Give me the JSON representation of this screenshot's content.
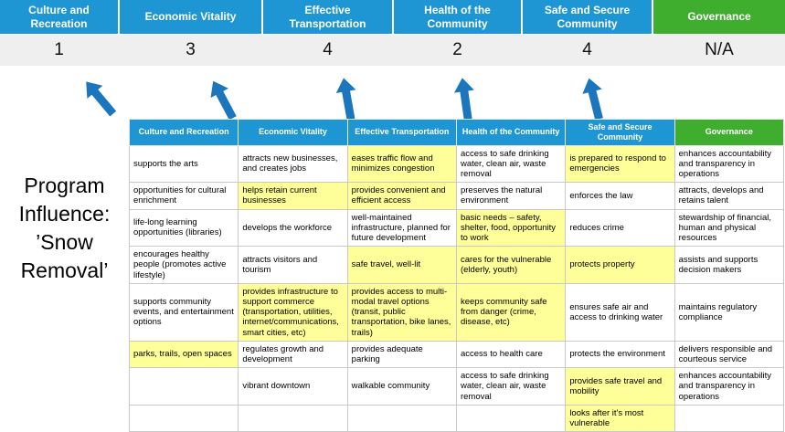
{
  "page": {
    "title": "Program Influence: ’Snow Removal’"
  },
  "colors": {
    "pillar_blue": "#1F96D4",
    "pillar_green": "#3FAE2E",
    "highlight_yellow": "#FFFF99",
    "arrow_blue": "#1C76BD",
    "score_band_bg": "#EFEFEF"
  },
  "summary": {
    "columns": [
      {
        "label": "Culture and Recreation",
        "score": "1",
        "color": "blue"
      },
      {
        "label": "Economic Vitality",
        "score": "3",
        "color": "blue"
      },
      {
        "label": "Effective Transportation",
        "score": "4",
        "color": "blue"
      },
      {
        "label": "Health of the Community",
        "score": "2",
        "color": "blue"
      },
      {
        "label": "Safe and Secure Community",
        "score": "4",
        "color": "blue"
      },
      {
        "label": "Governance",
        "score": "N/A",
        "color": "green"
      }
    ]
  },
  "matrix": {
    "headers": [
      {
        "label": "Culture and Recreation",
        "color": "blue"
      },
      {
        "label": "Economic Vitality",
        "color": "blue"
      },
      {
        "label": "Effective Transportation",
        "color": "blue"
      },
      {
        "label": "Health of the Community",
        "color": "blue"
      },
      {
        "label": "Safe and Secure Community",
        "color": "blue"
      },
      {
        "label": "Governance",
        "color": "green"
      }
    ],
    "rows": [
      [
        {
          "text": "supports the arts",
          "hl": false
        },
        {
          "text": "attracts new businesses, and creates jobs",
          "hl": false
        },
        {
          "text": "eases traffic flow and minimizes congestion",
          "hl": true
        },
        {
          "text": "access to safe drinking water, clean air, waste removal",
          "hl": false
        },
        {
          "text": "is prepared to respond to emergencies",
          "hl": true
        },
        {
          "text": "enhances accountability and transparency in operations",
          "hl": false
        }
      ],
      [
        {
          "text": "opportunities for cultural enrichment",
          "hl": false
        },
        {
          "text": "helps retain current businesses",
          "hl": true
        },
        {
          "text": "provides convenient and efficient access",
          "hl": true
        },
        {
          "text": "preserves the natural environment",
          "hl": false
        },
        {
          "text": "enforces the law",
          "hl": false
        },
        {
          "text": "attracts, develops and retains talent",
          "hl": false
        }
      ],
      [
        {
          "text": "life-long learning opportunities (libraries)",
          "hl": false
        },
        {
          "text": "develops the workforce",
          "hl": false
        },
        {
          "text": "well-maintained infrastructure, planned for future development",
          "hl": false
        },
        {
          "text": "basic needs – safety, shelter, food, opportunity to work",
          "hl": true
        },
        {
          "text": "reduces crime",
          "hl": false
        },
        {
          "text": "stewardship of financial, human and physical resources",
          "hl": false
        }
      ],
      [
        {
          "text": "encourages healthy people (promotes active lifestyle)",
          "hl": false
        },
        {
          "text": "attracts visitors and tourism",
          "hl": false
        },
        {
          "text": "safe travel, well-lit",
          "hl": true
        },
        {
          "text": "cares for the vulnerable (elderly, youth)",
          "hl": true
        },
        {
          "text": "protects property",
          "hl": true
        },
        {
          "text": "assists and supports decision makers",
          "hl": false
        }
      ],
      [
        {
          "text": "supports community events, and entertainment options",
          "hl": false
        },
        {
          "text": "provides infrastructure to support commerce (transportation, utilities, internet/communications, smart cities, etc)",
          "hl": true
        },
        {
          "text": "provides access to multi-modal travel options (transit, public transportation, bike lanes, trails)",
          "hl": true
        },
        {
          "text": "keeps community safe from danger (crime, disease, etc)",
          "hl": true
        },
        {
          "text": "ensures safe air and access to drinking water",
          "hl": false
        },
        {
          "text": "maintains regulatory compliance",
          "hl": false
        }
      ],
      [
        {
          "text": "parks, trails, open spaces",
          "hl": true
        },
        {
          "text": "regulates growth and development",
          "hl": false
        },
        {
          "text": "provides adequate parking",
          "hl": false
        },
        {
          "text": "access to health care",
          "hl": false
        },
        {
          "text": "protects the environment",
          "hl": false
        },
        {
          "text": "delivers responsible and courteous service",
          "hl": false
        }
      ],
      [
        {
          "text": "",
          "hl": false
        },
        {
          "text": "vibrant downtown",
          "hl": false
        },
        {
          "text": "walkable community",
          "hl": false
        },
        {
          "text": "access to safe drinking water, clean air, waste removal",
          "hl": false
        },
        {
          "text": "provides safe travel and mobility",
          "hl": true
        },
        {
          "text": "enhances accountability and transparency in operations",
          "hl": false
        }
      ],
      [
        {
          "text": "",
          "hl": false
        },
        {
          "text": "",
          "hl": false
        },
        {
          "text": "",
          "hl": false
        },
        {
          "text": "",
          "hl": false
        },
        {
          "text": "looks after it's most vulnerable",
          "hl": true
        },
        {
          "text": "",
          "hl": false
        }
      ]
    ]
  }
}
